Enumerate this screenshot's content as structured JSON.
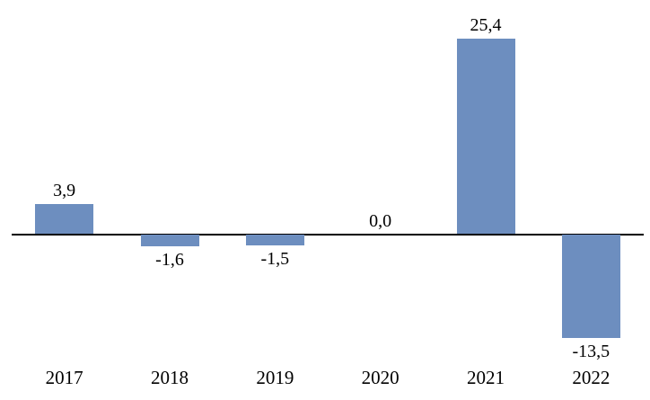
{
  "chart_data": {
    "type": "bar",
    "title": "",
    "xlabel": "",
    "ylabel": "",
    "categories": [
      "2017",
      "2018",
      "2019",
      "2020",
      "2021",
      "2022"
    ],
    "values": [
      3.9,
      -1.6,
      -1.5,
      0.0,
      25.4,
      -13.5
    ],
    "value_labels": [
      "3,9",
      "-1,6",
      "-1,5",
      "0,0",
      "25,4",
      "-13,5"
    ],
    "decimal_separator": ",",
    "ylim": [
      -21,
      28
    ],
    "grid": false,
    "legend": false,
    "bar_color": "#6D8EBF",
    "axis_color": "#000000",
    "text_color": "#000000"
  }
}
